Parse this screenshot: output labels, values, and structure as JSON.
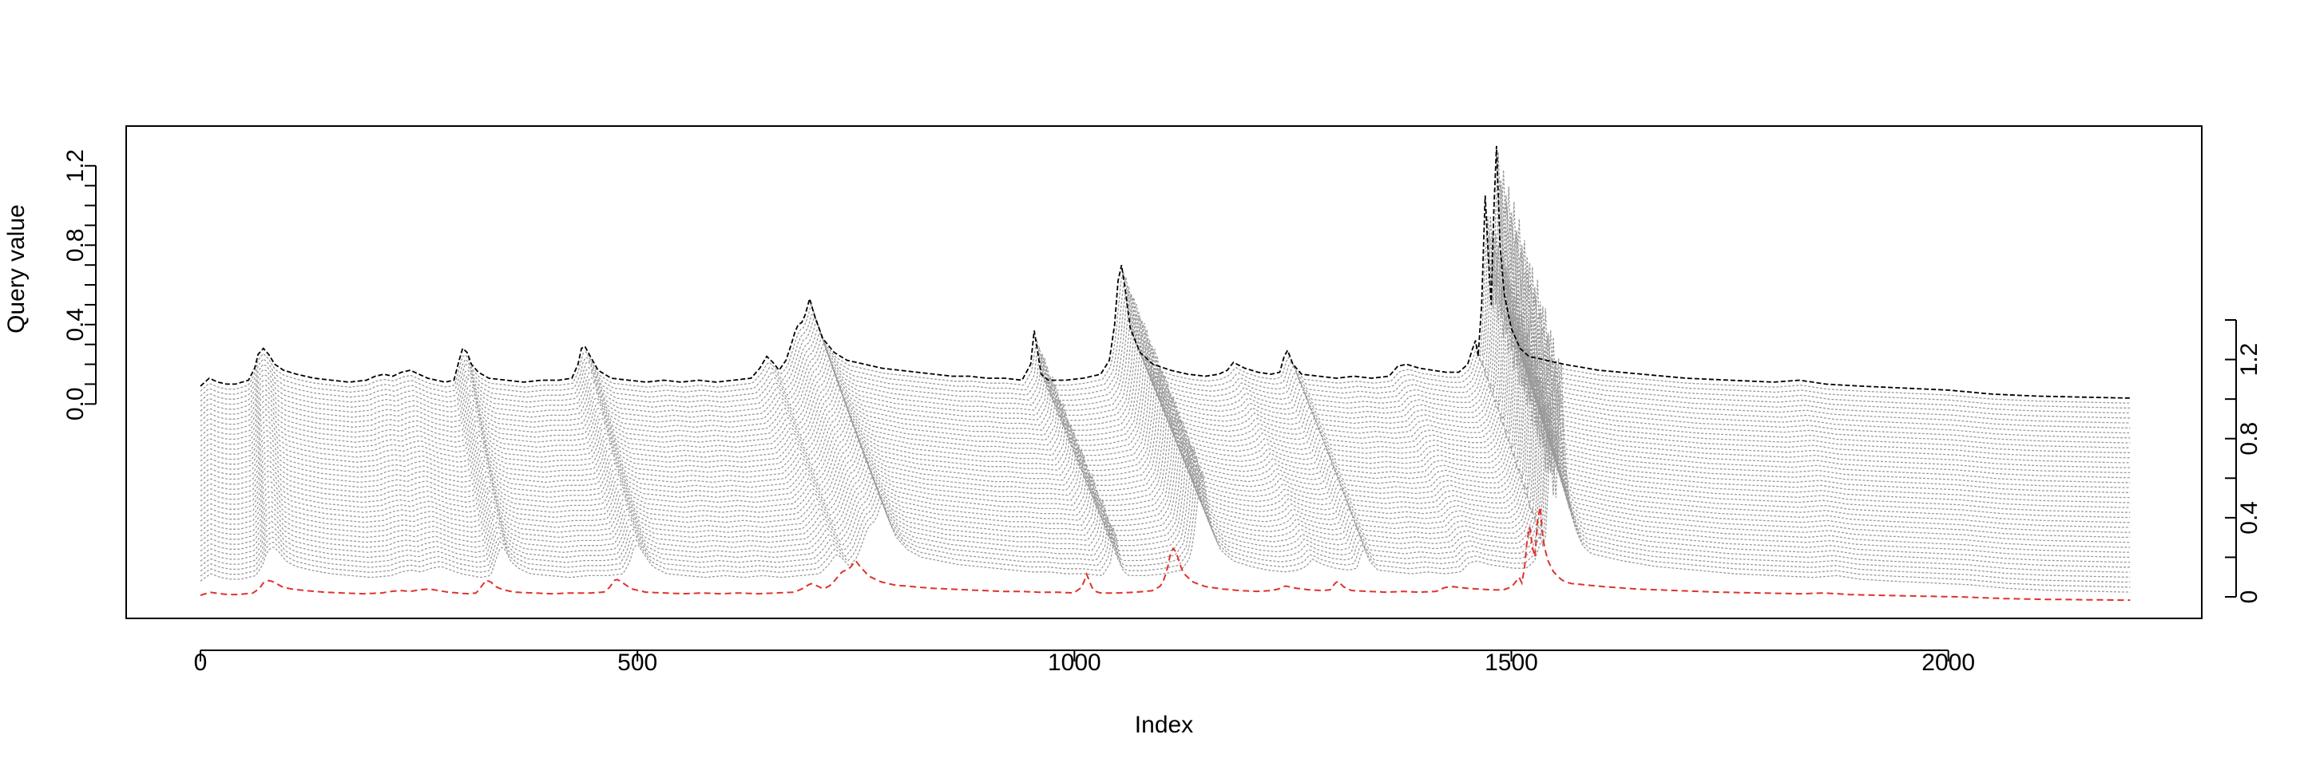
{
  "chart_data": {
    "type": "line",
    "title": "",
    "xlabel": "Index",
    "ylabel": "Query value",
    "xlim": [
      -85,
      2290
    ],
    "xticks": [
      "0",
      "500",
      "1000",
      "1500",
      "2000"
    ],
    "xtick_values": [
      0,
      500,
      1000,
      1500,
      2000
    ],
    "ylim": [
      -1.08,
      1.4
    ],
    "left_yticks": [
      "0.0",
      "0.4",
      "0.8",
      "1.2"
    ],
    "left_ytick_values": [
      0.0,
      0.4,
      0.8,
      1.2
    ],
    "right_yticks": [
      "0",
      "0.4",
      "0.8",
      "1.2"
    ],
    "right_ytick_values": [
      0,
      0.4,
      0.8,
      1.2
    ],
    "right_axis_range": [
      0,
      1.4
    ],
    "n_warped_series": 40,
    "grid": false,
    "query_series": {
      "name": "",
      "style": "dashed",
      "color": "#000000",
      "x": [
        0,
        10,
        20,
        30,
        40,
        55,
        62,
        66,
        72,
        78,
        85,
        95,
        110,
        130,
        150,
        170,
        190,
        200,
        210,
        220,
        230,
        240,
        250,
        260,
        270,
        280,
        290,
        296,
        300,
        305,
        310,
        318,
        330,
        350,
        370,
        390,
        410,
        425,
        432,
        436,
        440,
        446,
        455,
        470,
        490,
        510,
        530,
        550,
        570,
        590,
        610,
        630,
        640,
        648,
        655,
        662,
        670,
        676,
        680,
        684,
        688,
        692,
        697,
        703,
        712,
        725,
        740,
        760,
        780,
        800,
        820,
        840,
        860,
        880,
        900,
        920,
        940,
        950,
        954,
        958,
        962,
        970,
        990,
        1010,
        1030,
        1040,
        1046,
        1050,
        1054,
        1058,
        1064,
        1075,
        1090,
        1110,
        1130,
        1150,
        1165,
        1175,
        1182,
        1195,
        1210,
        1225,
        1235,
        1240,
        1244,
        1250,
        1260,
        1280,
        1300,
        1320,
        1340,
        1360,
        1370,
        1380,
        1395,
        1410,
        1425,
        1440,
        1450,
        1455,
        1459,
        1462,
        1466,
        1470,
        1474,
        1477,
        1480,
        1483,
        1487,
        1492,
        1500,
        1510,
        1520,
        1540,
        1560,
        1600,
        1650,
        1700,
        1750,
        1800,
        1830,
        1860,
        1900,
        1950,
        2000,
        2050,
        2100,
        2150,
        2200,
        2210
      ],
      "y": [
        0.09,
        0.13,
        0.11,
        0.1,
        0.1,
        0.12,
        0.18,
        0.25,
        0.28,
        0.25,
        0.2,
        0.17,
        0.15,
        0.13,
        0.12,
        0.11,
        0.12,
        0.14,
        0.15,
        0.14,
        0.16,
        0.17,
        0.15,
        0.13,
        0.12,
        0.11,
        0.12,
        0.22,
        0.28,
        0.26,
        0.2,
        0.16,
        0.13,
        0.12,
        0.11,
        0.12,
        0.12,
        0.13,
        0.2,
        0.28,
        0.29,
        0.24,
        0.17,
        0.13,
        0.12,
        0.11,
        0.12,
        0.11,
        0.12,
        0.11,
        0.12,
        0.13,
        0.18,
        0.24,
        0.21,
        0.17,
        0.22,
        0.3,
        0.36,
        0.4,
        0.41,
        0.45,
        0.53,
        0.44,
        0.33,
        0.26,
        0.22,
        0.2,
        0.18,
        0.17,
        0.16,
        0.15,
        0.14,
        0.14,
        0.13,
        0.13,
        0.12,
        0.2,
        0.37,
        0.26,
        0.15,
        0.12,
        0.12,
        0.13,
        0.15,
        0.22,
        0.4,
        0.62,
        0.7,
        0.58,
        0.38,
        0.26,
        0.2,
        0.17,
        0.15,
        0.14,
        0.15,
        0.17,
        0.21,
        0.18,
        0.16,
        0.15,
        0.16,
        0.24,
        0.27,
        0.2,
        0.15,
        0.14,
        0.13,
        0.14,
        0.13,
        0.14,
        0.19,
        0.2,
        0.18,
        0.17,
        0.16,
        0.16,
        0.2,
        0.27,
        0.32,
        0.24,
        0.5,
        1.05,
        0.72,
        0.5,
        0.98,
        1.3,
        0.8,
        0.55,
        0.38,
        0.28,
        0.24,
        0.22,
        0.2,
        0.17,
        0.15,
        0.13,
        0.12,
        0.11,
        0.12,
        0.1,
        0.09,
        0.08,
        0.07,
        0.05,
        0.04,
        0.035,
        0.03,
        0.03
      ]
    },
    "reference_series": {
      "name": "",
      "style": "dashed",
      "color": "#E0312C",
      "offset_from_query": -1.0
    }
  }
}
